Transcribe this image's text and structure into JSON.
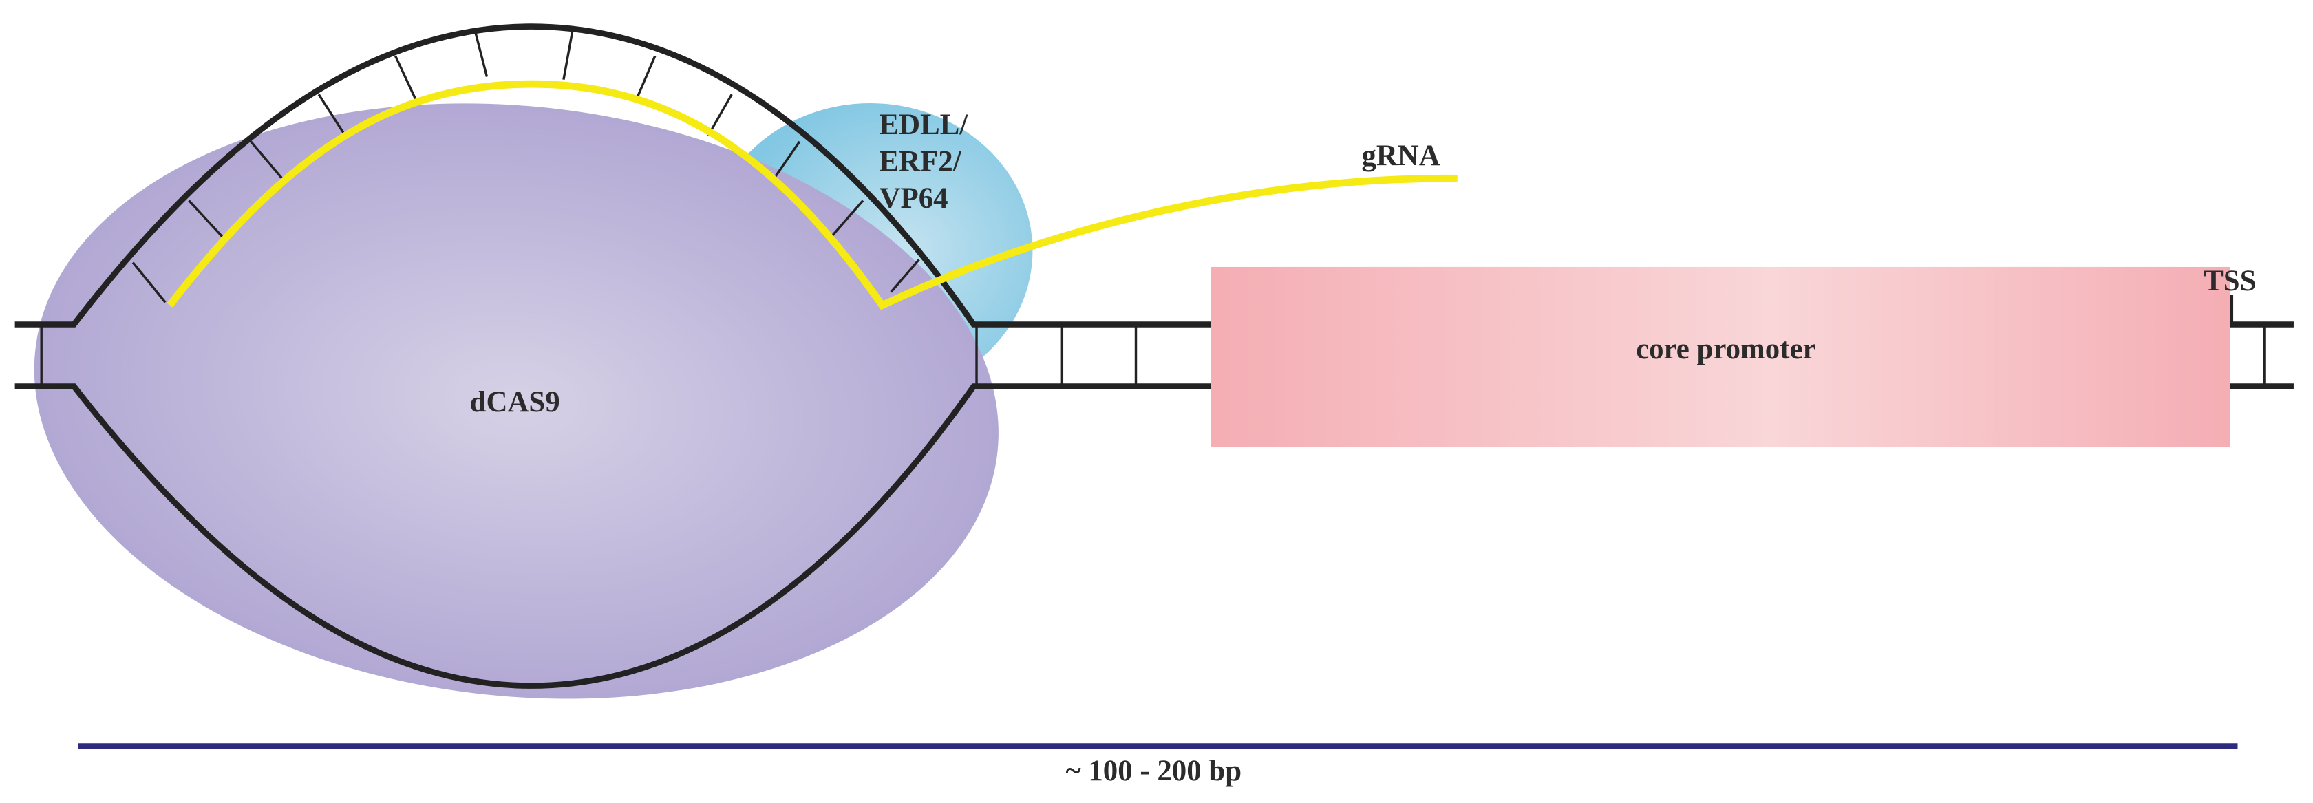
{
  "labels": {
    "effector": [
      "EDLL/",
      "ERF2/",
      "VP64"
    ],
    "grna": "gRNA",
    "tss": "TSS",
    "core_promoter": "core promoter",
    "dcas9": "dCAS9",
    "span": "~ 100 - 200 bp"
  }
}
